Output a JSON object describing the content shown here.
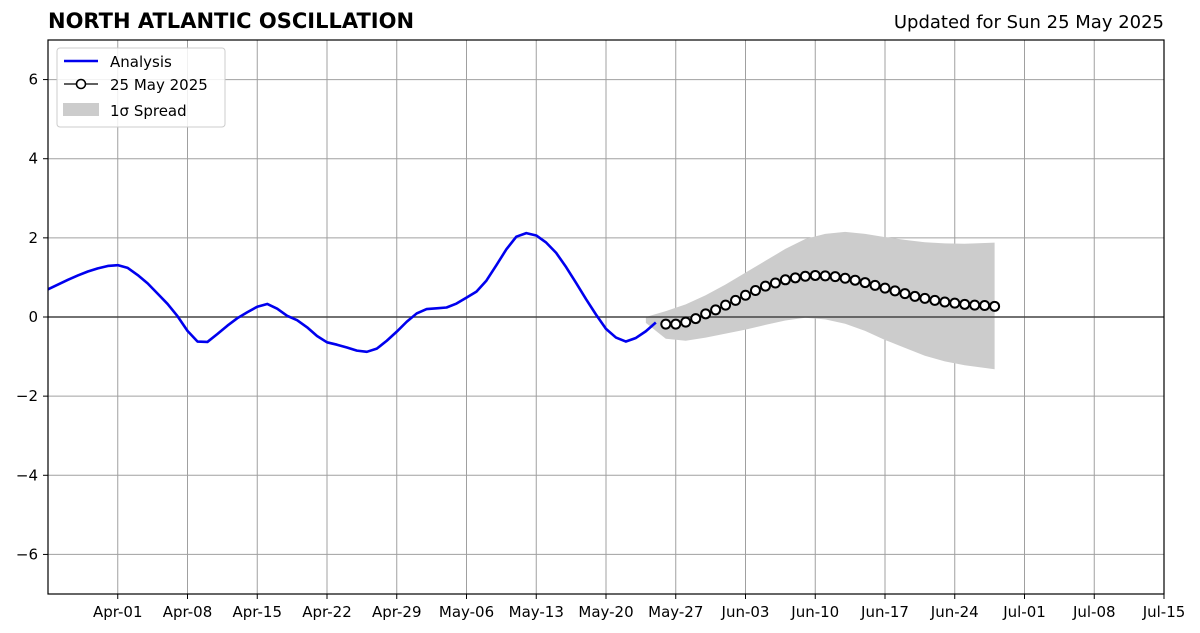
{
  "header": {
    "title": "NORTH ATLANTIC OSCILLATION",
    "updated": "Updated for Sun 25 May 2025"
  },
  "chart_data": {
    "type": "line",
    "title": "NORTH ATLANTIC OSCILLATION",
    "subtitle": "Updated for Sun 25 May 2025",
    "xlabel": "",
    "ylabel": "",
    "xlim": [
      "2025-03-25",
      "2025-07-15"
    ],
    "ylim": [
      -7,
      7
    ],
    "grid": true,
    "legend_position": "top-left",
    "x_ticks": [
      "Apr-01",
      "Apr-08",
      "Apr-15",
      "Apr-22",
      "Apr-29",
      "May-06",
      "May-13",
      "May-20",
      "May-27",
      "Jun-03",
      "Jun-10",
      "Jun-17",
      "Jun-24",
      "Jul-01",
      "Jul-08",
      "Jul-15"
    ],
    "x_tick_dates": [
      "2025-04-01",
      "2025-04-08",
      "2025-04-15",
      "2025-04-22",
      "2025-04-29",
      "2025-05-06",
      "2025-05-13",
      "2025-05-20",
      "2025-05-27",
      "2025-06-03",
      "2025-06-10",
      "2025-06-17",
      "2025-06-24",
      "2025-07-01",
      "2025-07-08",
      "2025-07-15"
    ],
    "y_ticks": [
      "6",
      "4",
      "2",
      "0",
      "−2",
      "−4",
      "−6"
    ],
    "y_tick_values": [
      6,
      4,
      2,
      0,
      -2,
      -4,
      -6
    ],
    "zero_line": 0,
    "series": [
      {
        "name": "Analysis",
        "color": "#0000ee",
        "style": "line",
        "points": [
          [
            "2025-03-25",
            0.7
          ],
          [
            "2025-03-26",
            0.82
          ],
          [
            "2025-03-27",
            0.94
          ],
          [
            "2025-03-28",
            1.05
          ],
          [
            "2025-03-29",
            1.15
          ],
          [
            "2025-03-30",
            1.23
          ],
          [
            "2025-03-31",
            1.29
          ],
          [
            "2025-04-01",
            1.31
          ],
          [
            "2025-04-02",
            1.24
          ],
          [
            "2025-04-03",
            1.06
          ],
          [
            "2025-04-04",
            0.85
          ],
          [
            "2025-04-05",
            0.59
          ],
          [
            "2025-04-06",
            0.33
          ],
          [
            "2025-04-07",
            0.02
          ],
          [
            "2025-04-08",
            -0.35
          ],
          [
            "2025-04-09",
            -0.62
          ],
          [
            "2025-04-10",
            -0.63
          ],
          [
            "2025-04-11",
            -0.43
          ],
          [
            "2025-04-12",
            -0.22
          ],
          [
            "2025-04-13",
            -0.03
          ],
          [
            "2025-04-14",
            0.12
          ],
          [
            "2025-04-15",
            0.26
          ],
          [
            "2025-04-16",
            0.33
          ],
          [
            "2025-04-17",
            0.21
          ],
          [
            "2025-04-18",
            0.03
          ],
          [
            "2025-04-19",
            -0.08
          ],
          [
            "2025-04-20",
            -0.26
          ],
          [
            "2025-04-21",
            -0.48
          ],
          [
            "2025-04-22",
            -0.64
          ],
          [
            "2025-04-23",
            -0.7
          ],
          [
            "2025-04-24",
            -0.77
          ],
          [
            "2025-04-25",
            -0.85
          ],
          [
            "2025-04-26",
            -0.88
          ],
          [
            "2025-04-27",
            -0.8
          ],
          [
            "2025-04-28",
            -0.6
          ],
          [
            "2025-04-29",
            -0.37
          ],
          [
            "2025-04-30",
            -0.12
          ],
          [
            "2025-05-01",
            0.09
          ],
          [
            "2025-05-02",
            0.2
          ],
          [
            "2025-05-03",
            0.22
          ],
          [
            "2025-05-04",
            0.24
          ],
          [
            "2025-05-05",
            0.34
          ],
          [
            "2025-05-06",
            0.49
          ],
          [
            "2025-05-07",
            0.64
          ],
          [
            "2025-05-08",
            0.92
          ],
          [
            "2025-05-09",
            1.31
          ],
          [
            "2025-05-10",
            1.71
          ],
          [
            "2025-05-11",
            2.03
          ],
          [
            "2025-05-12",
            2.12
          ],
          [
            "2025-05-13",
            2.06
          ],
          [
            "2025-05-14",
            1.88
          ],
          [
            "2025-05-15",
            1.62
          ],
          [
            "2025-05-16",
            1.26
          ],
          [
            "2025-05-17",
            0.86
          ],
          [
            "2025-05-18",
            0.45
          ],
          [
            "2025-05-19",
            0.06
          ],
          [
            "2025-05-20",
            -0.3
          ],
          [
            "2025-05-21",
            -0.52
          ],
          [
            "2025-05-22",
            -0.62
          ],
          [
            "2025-05-23",
            -0.53
          ],
          [
            "2025-05-24",
            -0.36
          ],
          [
            "2025-05-25",
            -0.14
          ]
        ]
      },
      {
        "name": "25 May 2025",
        "color": "#000000",
        "marker": "open-circle",
        "points": [
          [
            "2025-05-26",
            -0.18
          ],
          [
            "2025-05-27",
            -0.18
          ],
          [
            "2025-05-28",
            -0.13
          ],
          [
            "2025-05-29",
            -0.04
          ],
          [
            "2025-05-30",
            0.08
          ],
          [
            "2025-05-31",
            0.18
          ],
          [
            "2025-06-01",
            0.3
          ],
          [
            "2025-06-02",
            0.42
          ],
          [
            "2025-06-03",
            0.55
          ],
          [
            "2025-06-04",
            0.67
          ],
          [
            "2025-06-05",
            0.78
          ],
          [
            "2025-06-06",
            0.86
          ],
          [
            "2025-06-07",
            0.94
          ],
          [
            "2025-06-08",
            0.99
          ],
          [
            "2025-06-09",
            1.03
          ],
          [
            "2025-06-10",
            1.05
          ],
          [
            "2025-06-11",
            1.04
          ],
          [
            "2025-06-12",
            1.02
          ],
          [
            "2025-06-13",
            0.98
          ],
          [
            "2025-06-14",
            0.93
          ],
          [
            "2025-06-15",
            0.87
          ],
          [
            "2025-06-16",
            0.8
          ],
          [
            "2025-06-17",
            0.73
          ],
          [
            "2025-06-18",
            0.66
          ],
          [
            "2025-06-19",
            0.59
          ],
          [
            "2025-06-20",
            0.52
          ],
          [
            "2025-06-21",
            0.47
          ],
          [
            "2025-06-22",
            0.42
          ],
          [
            "2025-06-23",
            0.38
          ],
          [
            "2025-06-24",
            0.35
          ],
          [
            "2025-06-25",
            0.32
          ],
          [
            "2025-06-26",
            0.3
          ],
          [
            "2025-06-27",
            0.29
          ],
          [
            "2025-06-28",
            0.27
          ]
        ]
      },
      {
        "name": "1σ Spread",
        "color": "#cccccc",
        "style": "band",
        "points": [
          [
            "2025-05-24",
            -0.15,
            0.0
          ],
          [
            "2025-05-26",
            -0.55,
            0.15
          ],
          [
            "2025-05-28",
            -0.6,
            0.32
          ],
          [
            "2025-05-30",
            -0.52,
            0.55
          ],
          [
            "2025-06-01",
            -0.42,
            0.82
          ],
          [
            "2025-06-03",
            -0.32,
            1.12
          ],
          [
            "2025-06-05",
            -0.2,
            1.42
          ],
          [
            "2025-06-07",
            -0.09,
            1.72
          ],
          [
            "2025-06-09",
            -0.02,
            1.97
          ],
          [
            "2025-06-11",
            -0.06,
            2.1
          ],
          [
            "2025-06-13",
            -0.17,
            2.15
          ],
          [
            "2025-06-15",
            -0.35,
            2.1
          ],
          [
            "2025-06-17",
            -0.58,
            2.02
          ],
          [
            "2025-06-19",
            -0.78,
            1.95
          ],
          [
            "2025-06-21",
            -0.98,
            1.89
          ],
          [
            "2025-06-23",
            -1.12,
            1.86
          ],
          [
            "2025-06-25",
            -1.22,
            1.85
          ],
          [
            "2025-06-28",
            -1.32,
            1.88
          ]
        ]
      }
    ]
  }
}
